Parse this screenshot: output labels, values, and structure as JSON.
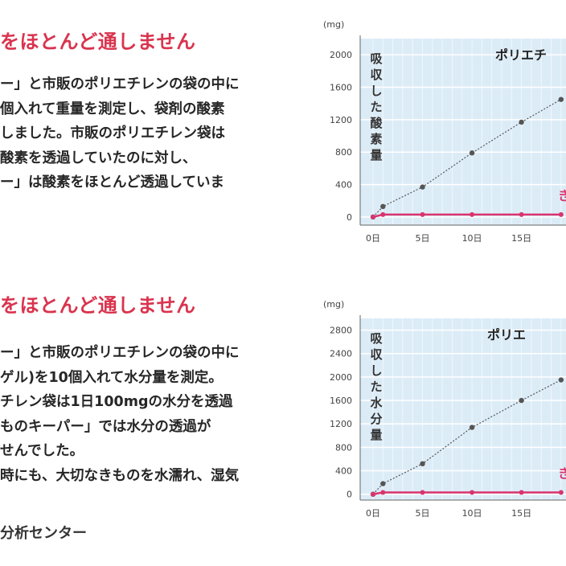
{
  "section1": {
    "heading": "をほとんど通しません",
    "lines": [
      "ー」と市販のポリエチレンの袋の中に",
      "個入れて重量を測定し、袋剤の酸素",
      "しました。市販のポリエチレン袋は",
      "酸素を透過していたのに対し、",
      "ー」は酸素をほとんど透過していま"
    ]
  },
  "section2": {
    "heading": "をほとんど通しません",
    "lines": [
      "ー」と市販のポリエチレンの袋の中に",
      "ゲル)を10個入れて水分量を測定。",
      "チレン袋は1日100mgの水分を透過",
      "ものキーパー」では水分の透過が",
      "せんでした。",
      "時にも、大切なきものを水濡れ、湿気"
    ]
  },
  "source": "分析センター",
  "colors": {
    "heading": "#d9344e",
    "plot_bg": "#dcecf7",
    "grid": "#ffffff",
    "polyethylene_line": "#555555",
    "keeper_line": "#d9346e"
  },
  "chart_data": [
    {
      "type": "line",
      "unit": "(mg)",
      "ylabel": "吸収した酸素量",
      "yticks": [
        0,
        400,
        800,
        1200,
        1600,
        2000
      ],
      "ytick_labels": [
        "0",
        "400",
        "800",
        "1200",
        "1600",
        "2000"
      ],
      "ylim": [
        -100,
        2200
      ],
      "xticks": [
        0,
        5,
        10,
        15
      ],
      "xtick_labels": [
        "0日",
        "5日",
        "10日",
        "15日"
      ],
      "xlim": [
        -1.3,
        19.5
      ],
      "grid": true,
      "series": [
        {
          "name": "ポリエチ",
          "x": [
            0,
            1,
            5,
            10,
            15,
            19
          ],
          "y": [
            0,
            130,
            370,
            790,
            1170,
            1450
          ]
        },
        {
          "name": "き",
          "x": [
            0,
            1,
            5,
            10,
            15,
            19
          ],
          "y": [
            0,
            30,
            30,
            30,
            30,
            30
          ]
        }
      ]
    },
    {
      "type": "line",
      "unit": "(mg)",
      "ylabel": "吸収した水分量",
      "yticks": [
        0,
        400,
        800,
        1200,
        1600,
        2000,
        2400,
        2800
      ],
      "ytick_labels": [
        "0",
        "400",
        "800",
        "1200",
        "1600",
        "2000",
        "2400",
        "2800"
      ],
      "ylim": [
        -100,
        3000
      ],
      "xticks": [
        0,
        5,
        10,
        15
      ],
      "xtick_labels": [
        "0日",
        "5日",
        "10日",
        "15日"
      ],
      "xlim": [
        -1.3,
        19.5
      ],
      "grid": true,
      "series": [
        {
          "name": "ポリエ",
          "x": [
            0,
            1,
            5,
            10,
            15,
            19
          ],
          "y": [
            0,
            180,
            520,
            1140,
            1600,
            1950
          ]
        },
        {
          "name": "き",
          "x": [
            0,
            1,
            5,
            10,
            15,
            19
          ],
          "y": [
            0,
            30,
            30,
            30,
            30,
            30
          ]
        }
      ]
    }
  ]
}
